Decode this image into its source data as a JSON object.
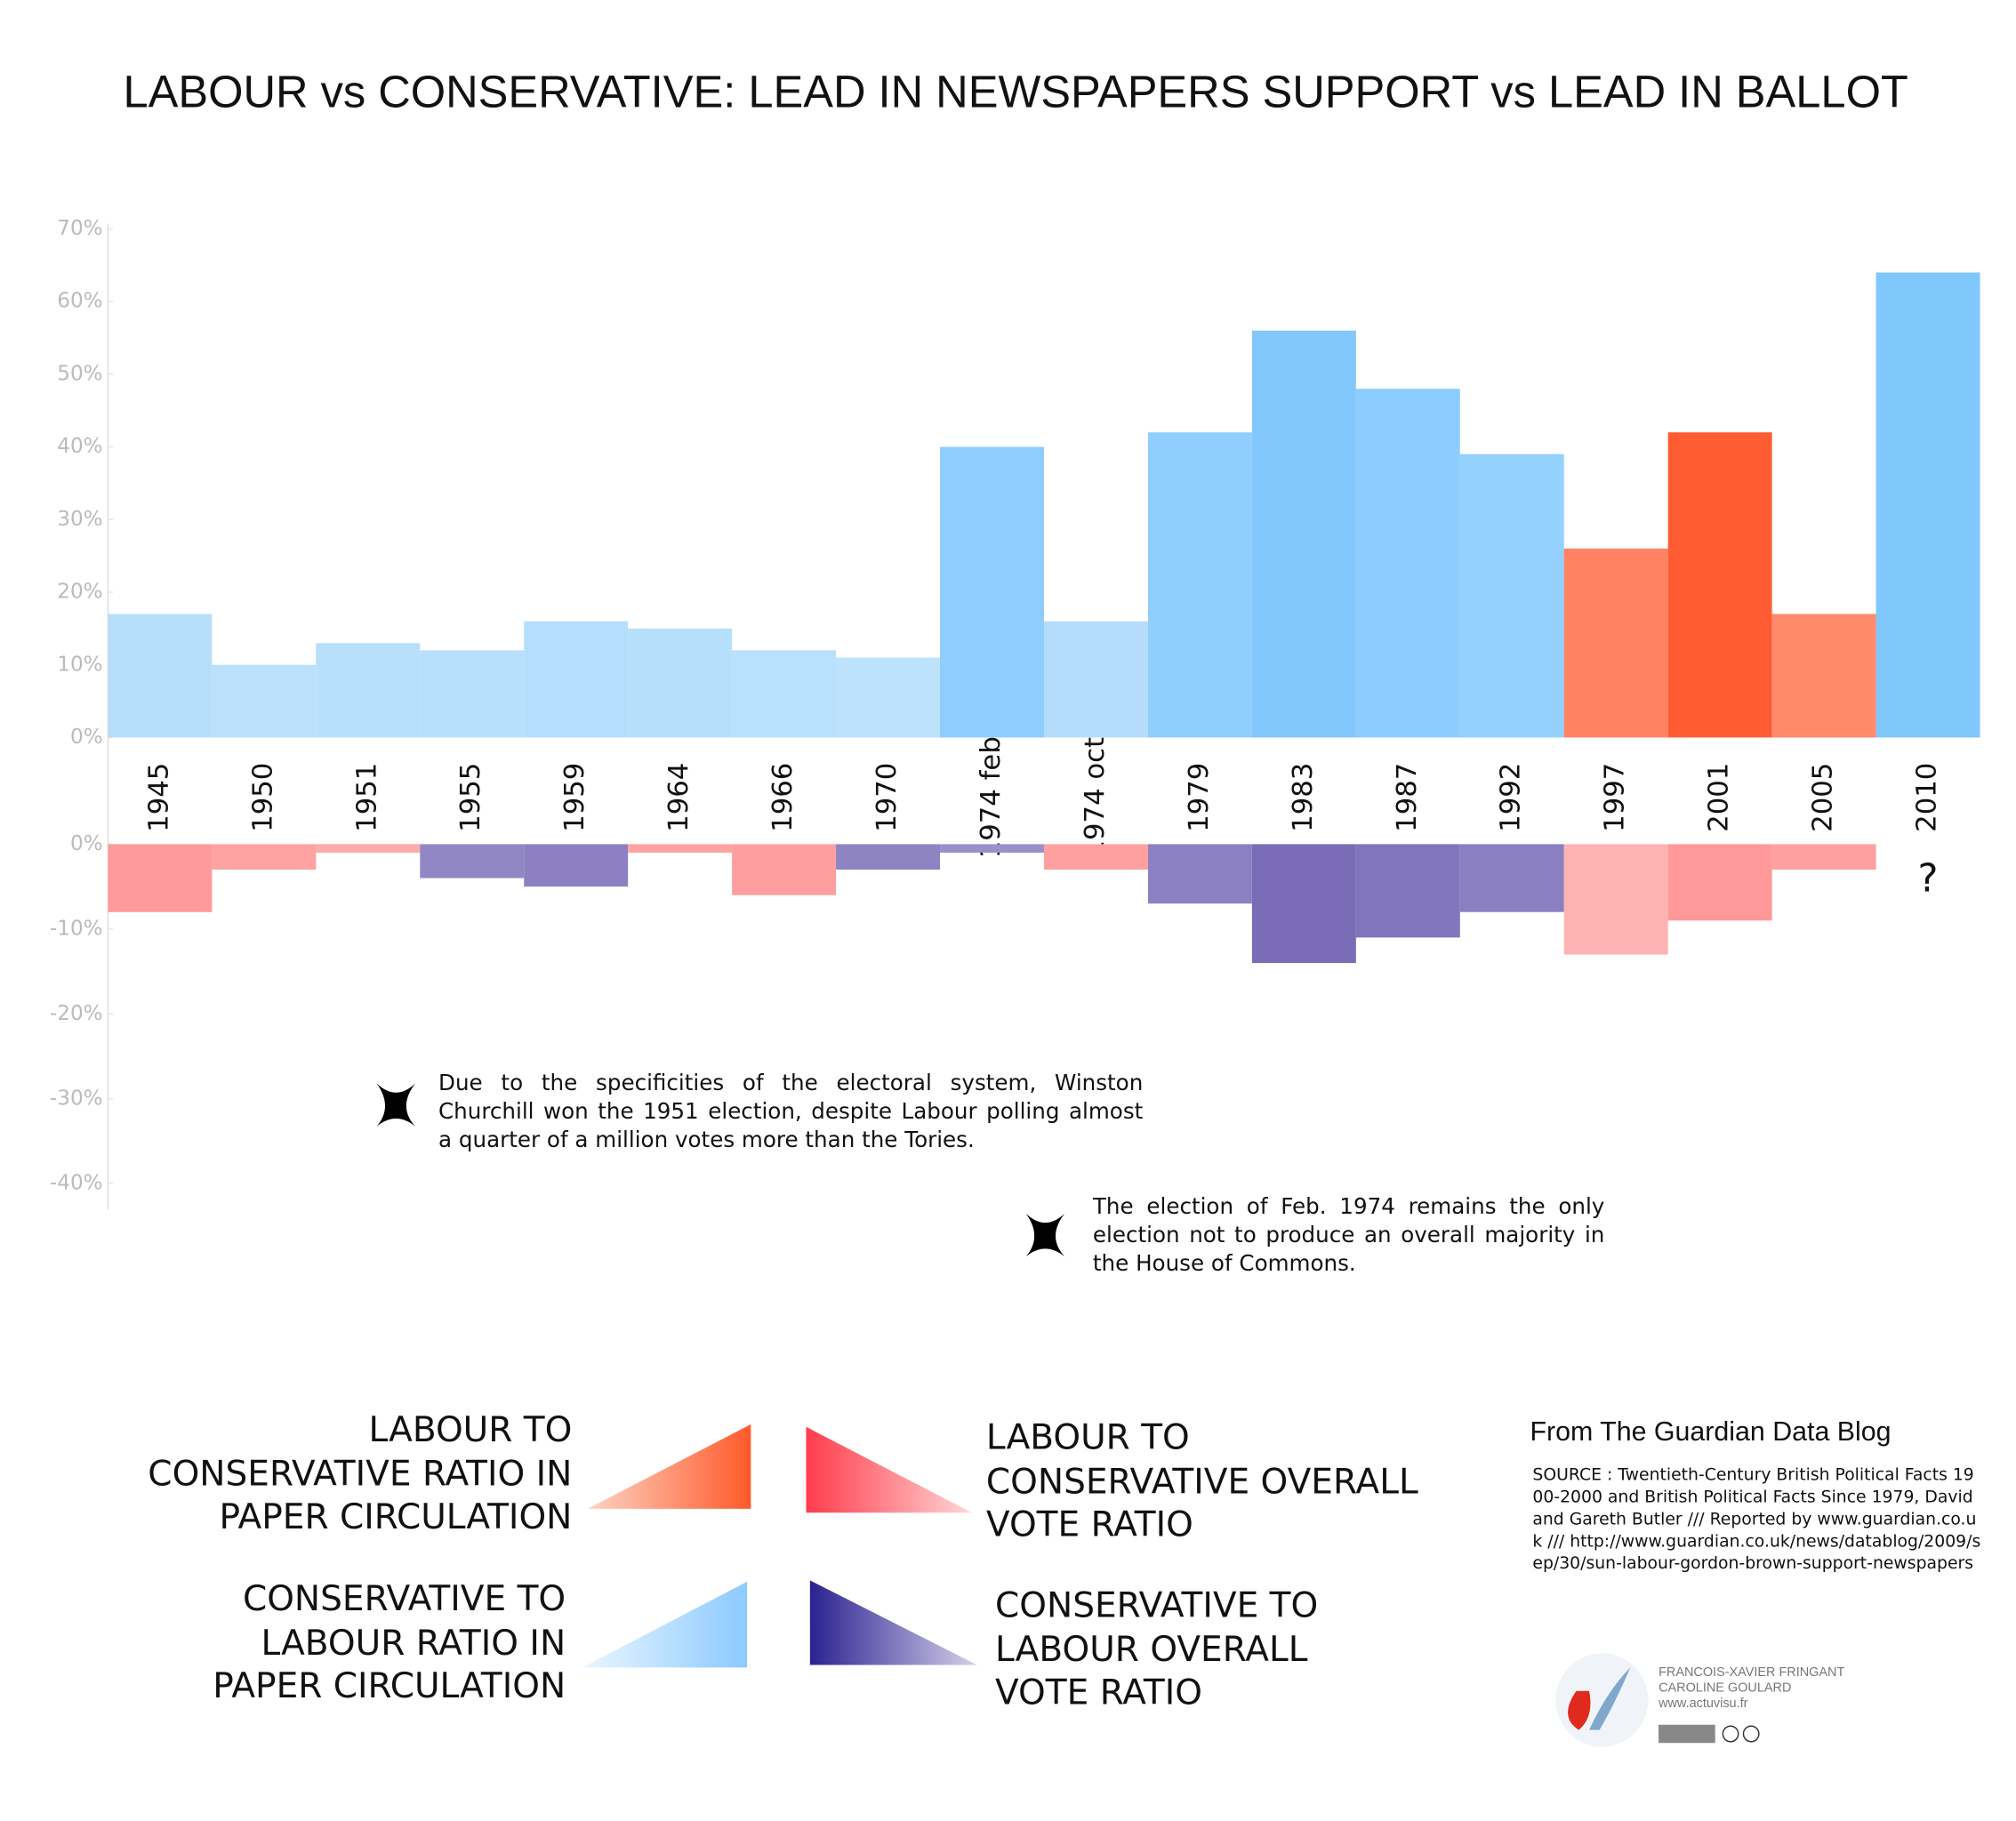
{
  "chart_data": [
    {
      "type": "bar",
      "title": "LABOUR vs CONSERVATIVE: LEAD IN NEWSPAPERS SUPPORT vs LEAD IN BALLOT",
      "categories": [
        "1945",
        "1950",
        "1951",
        "1955",
        "1959",
        "1964",
        "1966",
        "1970",
        "1974 feb",
        "1974 oct",
        "1979",
        "1983",
        "1987",
        "1992",
        "1997",
        "2001",
        "2005",
        "2010"
      ],
      "values": [
        17,
        10,
        13,
        12,
        16,
        15,
        12,
        11,
        40,
        16,
        42,
        56,
        48,
        39,
        26,
        42,
        17,
        64
      ],
      "colors": [
        "#b7dffc",
        "#bae0fc",
        "#b8e0fc",
        "#b8e0fc",
        "#b5defc",
        "#b6dffc",
        "#b9e0fc",
        "#bce2fc",
        "#8ecdfd",
        "#b5dcfb",
        "#8fcefd",
        "#82c8fc",
        "#8dcdfd",
        "#95d1fd",
        "#ff8262",
        "#ff5c33",
        "#ff8a6c",
        "#80c7fb"
      ],
      "ylim": [
        0,
        70
      ],
      "yticks": [
        {
          "value": 0,
          "label": "0%"
        },
        {
          "value": 10,
          "label": "10%"
        },
        {
          "value": 20,
          "label": "20%"
        },
        {
          "value": 30,
          "label": "30%"
        },
        {
          "value": 40,
          "label": "40%"
        },
        {
          "value": 50,
          "label": "50%"
        },
        {
          "value": 60,
          "label": "60%"
        },
        {
          "value": 70,
          "label": "70%"
        }
      ]
    },
    {
      "type": "bar",
      "values": [
        -8,
        -3,
        -1,
        -4,
        -5,
        -1,
        -6,
        -3,
        -1,
        -3,
        -7,
        -14,
        -11,
        -8,
        -13,
        -9,
        -3,
        null
      ],
      "value_labels": [
        null,
        null,
        null,
        null,
        null,
        null,
        null,
        null,
        null,
        null,
        null,
        null,
        null,
        null,
        null,
        null,
        null,
        "?"
      ],
      "colors": [
        "#ff9a9a",
        "#ffa2a2",
        "#ffa8a8",
        "#9287c5",
        "#8c80c2",
        "#ffa2a2",
        "#ff9e9e",
        "#8e84c4",
        "#9a90c9",
        "#ffa0a0",
        "#8c81c2",
        "#7a6cb6",
        "#8176bd",
        "#8a7fc1",
        "#ffb3b3",
        "#ff9898",
        "#ffa0a0",
        null
      ],
      "ylim": [
        -40,
        0
      ],
      "yticks": [
        {
          "value": -40,
          "label": "-40%"
        },
        {
          "value": -30,
          "label": "-30%"
        },
        {
          "value": -20,
          "label": "-20%"
        },
        {
          "value": -10,
          "label": "-10%"
        },
        {
          "value": 0,
          "label": "0%"
        }
      ]
    }
  ],
  "notes": [
    "Due to the specificities of the electoral system, Winston Churchill won the 1951 election, despite Labour polling almost a quarter of a million votes more than the Tories.",
    "The election of Feb. 1974 remains the only election not to produce an overall majority in the House of Commons."
  ],
  "legend": [
    {
      "label": "LABOUR TO CONSERVATIVE RATIO IN PAPER CIRCULATION",
      "colors": [
        "#fdd3c4",
        "#ff5a2a"
      ]
    },
    {
      "label": "LABOUR TO CONSERVATIVE OVERALL VOTE RATIO",
      "colors": [
        "#ff3c4c",
        "#ffd6d6"
      ]
    },
    {
      "label": "CONSERVATIVE TO LABOUR RATIO IN PAPER CIRCULATION",
      "colors": [
        "#eaf6ff",
        "#8ccaff"
      ]
    },
    {
      "label": "CONSERVATIVE TO LABOUR OVERALL VOTE RATIO",
      "colors": [
        "#2a2290",
        "#d6d0ea"
      ]
    }
  ],
  "source": {
    "heading": "From The Guardian Data Blog",
    "text": "SOURCE : Twentieth-Century British Political Facts 1900-2000 and British Political Facts Since 1979, David and Gareth Butler /// Reported by www.guardian.co.uk /// http://www.guardian.co.uk/news/datablog/2009/sep/30/sun-labour-gordon-brown-support-newspapers",
    "credits": [
      "FRANCOIS-XAVIER FRINGANT",
      "CAROLINE GOULARD",
      "www.actuvisu.fr"
    ]
  }
}
